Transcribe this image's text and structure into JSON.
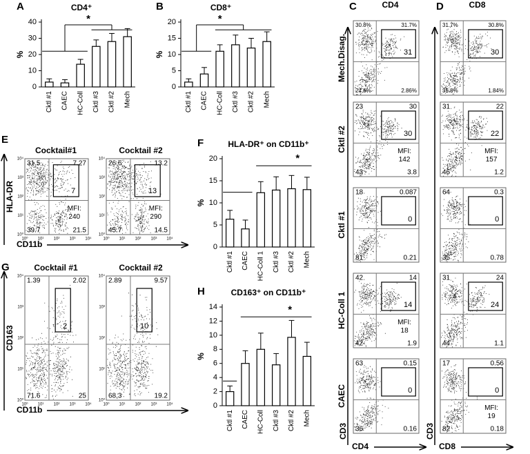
{
  "chart_data": [
    {
      "type": "bar",
      "panel_label": "A",
      "title": "CD4⁺",
      "y_label": "%",
      "annotation": "*",
      "categories": [
        "Cktl #1",
        "CAEC",
        "HC-Coll",
        "Cktl #3",
        "Cktl #2",
        "Mech"
      ],
      "values": [
        3,
        2.5,
        14,
        25,
        28,
        31
      ],
      "errors": [
        2,
        2,
        3,
        4,
        5,
        5
      ],
      "color": "#ffffff",
      "ylim": [
        0,
        40
      ],
      "yticks": [
        0,
        10,
        20,
        30,
        40
      ]
    },
    {
      "type": "bar",
      "panel_label": "B",
      "title": "CD8⁺",
      "y_label": "%",
      "annotation": "*",
      "categories": [
        "Cktl #1",
        "CAEC",
        "HC-Coll",
        "Cktl #3",
        "Cktl #2",
        "Mech"
      ],
      "values": [
        1.5,
        4,
        11,
        13,
        12,
        14
      ],
      "errors": [
        1,
        2,
        2,
        3,
        3,
        3
      ],
      "color": "#ffffff",
      "ylim": [
        0,
        20
      ],
      "yticks": [
        0,
        5,
        10,
        15,
        20
      ]
    },
    {
      "type": "bar",
      "panel_label": "F",
      "title": "HLA-DR⁺ on CD11b⁺",
      "y_label": "%",
      "annotation": "*",
      "categories": [
        "Cktl #1",
        "CAEC",
        "HC-Coll 1",
        "Cktl #3",
        "Cktl #2",
        "Mech"
      ],
      "values": [
        6.3,
        4.1,
        12.3,
        12.9,
        13.2,
        13
      ],
      "errors": [
        2,
        2,
        2.5,
        3,
        3,
        2.8
      ],
      "color": "#ffffff",
      "ylim": [
        0,
        20
      ],
      "yticks": [
        0,
        5,
        10,
        15,
        20
      ]
    },
    {
      "type": "bar",
      "panel_label": "H",
      "title": "CD163⁺ on CD11b⁺",
      "y_label": "%",
      "annotation": "*",
      "categories": [
        "Cktl #1",
        "CAEC",
        "HC-Coll",
        "Cktl #3",
        "Cktl #2",
        "Mech"
      ],
      "values": [
        2,
        6,
        8,
        5.8,
        9.7,
        7
      ],
      "errors": [
        0.8,
        1.8,
        2.3,
        1.6,
        2.4,
        2
      ],
      "color": "#ffffff",
      "ylim": [
        0,
        14
      ],
      "yticks": [
        0,
        2,
        4,
        6,
        8,
        10,
        12,
        14
      ]
    }
  ],
  "flow": {
    "mfi_label": "MFI:",
    "log_ticks": [
      "10⁰",
      "10¹",
      "10²",
      "10³",
      "10⁴"
    ],
    "C": {
      "label": "C",
      "title": "CD4",
      "x_label": "CD4",
      "y_label": "CD3",
      "rows": [
        {
          "name": "Mech.Disag.",
          "ul": "30.8%",
          "ur": "31.7%",
          "ll": "24.6%",
          "lr": "2.86%",
          "gate": "31"
        },
        {
          "name": "Cktl #2",
          "ul": "23",
          "ur": "30",
          "ll": "43",
          "lr": "3.8",
          "gate": "30",
          "mfi": "142"
        },
        {
          "name": "Cktl #1",
          "ul": "18",
          "ur": "0.087",
          "ll": "81",
          "lr": "0.21",
          "gate": "0"
        },
        {
          "name": "HC-Coll 1",
          "ul": "42",
          "ur": "14",
          "ll": "42",
          "lr": "1.9",
          "gate": "14",
          "mfi": "18"
        },
        {
          "name": "CAEC",
          "ul": "63",
          "ur": "0.15",
          "ll": "36",
          "lr": "0.16",
          "gate": "0"
        }
      ]
    },
    "D": {
      "label": "D",
      "title": "CD8",
      "x_label": "CD8",
      "y_label": "CD3",
      "rows": [
        {
          "ul": "31.7%",
          "ur": "30.8%",
          "ll": "35.8%",
          "lr": "1.84%",
          "gate": "30"
        },
        {
          "ul": "31",
          "ur": "22",
          "ll": "46",
          "lr": "1.2",
          "gate": "22",
          "mfi": "157"
        },
        {
          "ul": "64",
          "ur": "0.3",
          "ll": "35",
          "lr": "0.78",
          "gate": "0"
        },
        {
          "ul": "31",
          "ur": "24",
          "ll": "44",
          "lr": "1.1",
          "gate": "24"
        },
        {
          "ul": "17",
          "ur": "0.56",
          "ll": "82",
          "lr": "0.18",
          "gate": "0",
          "mfi": "19"
        }
      ]
    },
    "E": {
      "label": "E",
      "x_label": "CD11b",
      "y_label": "HLA-DR",
      "plots": [
        {
          "title": "Cocktail#1",
          "ul": "31.5",
          "ur": "7.27",
          "ll": "39.7",
          "lr": "21.5",
          "gate": "7",
          "mfi": "240"
        },
        {
          "title": "Cocktail #2",
          "ul": "26.6",
          "ur": "13.2",
          "ll": "45.7",
          "lr": "14.5",
          "gate": "13",
          "mfi": "290"
        }
      ]
    },
    "G": {
      "label": "G",
      "x_label": "CD11b",
      "y_label": "CD163",
      "plots": [
        {
          "title": "Cocktail #1",
          "ul": "1.39",
          "ur": "2.02",
          "ll": "71.6",
          "lr": "25",
          "gate": "2"
        },
        {
          "title": "Cocktail #2",
          "ul": "2.89",
          "ur": "9.57",
          "ll": "68.3",
          "lr": "19.2",
          "gate": "10"
        }
      ]
    }
  }
}
